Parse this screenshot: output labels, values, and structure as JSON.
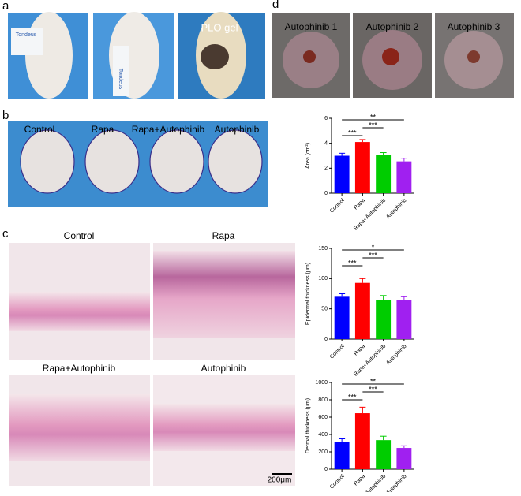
{
  "panels": {
    "a": {
      "label": "a",
      "photo_labels": [
        "PLO gel"
      ],
      "tape_labels": [
        "Tondeus",
        "Tondeus"
      ]
    },
    "b": {
      "label": "b",
      "photo_labels": [
        "Control",
        "Rapa",
        "Rapa+Autophinib",
        "Autophinib"
      ]
    },
    "c": {
      "label": "c",
      "photo_labels": [
        "Control",
        "Rapa",
        "Rapa+Autophinib",
        "Autophinib"
      ],
      "scale_bar": "200μm"
    },
    "d": {
      "label": "d",
      "photo_labels": [
        "Autophinib 1",
        "Autophinib 2",
        "Autophinib 3"
      ]
    }
  },
  "chart_data": [
    {
      "type": "bar",
      "ylabel": "Area (cm²)",
      "categories": [
        "Control",
        "Rapa",
        "Rapa+Autophinib",
        "Autophinib"
      ],
      "values": [
        3.0,
        4.1,
        3.05,
        2.55
      ],
      "errors": [
        0.2,
        0.2,
        0.2,
        0.25
      ],
      "colors": [
        "#0000ff",
        "#ff0000",
        "#00cc00",
        "#a020f0"
      ],
      "ylim": [
        0,
        6
      ],
      "yticks": [
        0,
        2,
        4,
        6
      ],
      "significance": [
        "**",
        "***",
        "***"
      ]
    },
    {
      "type": "bar",
      "ylabel": "Epidermal thickness (μm)",
      "categories": [
        "Control",
        "Rapa",
        "Rapa+Autophinib",
        "Autophinib"
      ],
      "values": [
        70,
        93,
        65,
        64
      ],
      "errors": [
        5,
        7,
        7,
        6
      ],
      "colors": [
        "#0000ff",
        "#ff0000",
        "#00cc00",
        "#a020f0"
      ],
      "ylim": [
        0,
        150
      ],
      "yticks": [
        0,
        50,
        100,
        150
      ],
      "significance": [
        "*",
        "***",
        "***"
      ]
    },
    {
      "type": "bar",
      "ylabel": "Dermal thickness (μm)",
      "categories": [
        "Control",
        "Rapa",
        "Rapa+Autophinib",
        "Autophinib"
      ],
      "values": [
        310,
        645,
        335,
        245
      ],
      "errors": [
        40,
        70,
        45,
        25
      ],
      "colors": [
        "#0000ff",
        "#ff0000",
        "#00cc00",
        "#a020f0"
      ],
      "ylim": [
        0,
        1000
      ],
      "yticks": [
        0,
        200,
        400,
        600,
        800,
        1000
      ],
      "significance": [
        "**",
        "***",
        "***"
      ]
    }
  ]
}
